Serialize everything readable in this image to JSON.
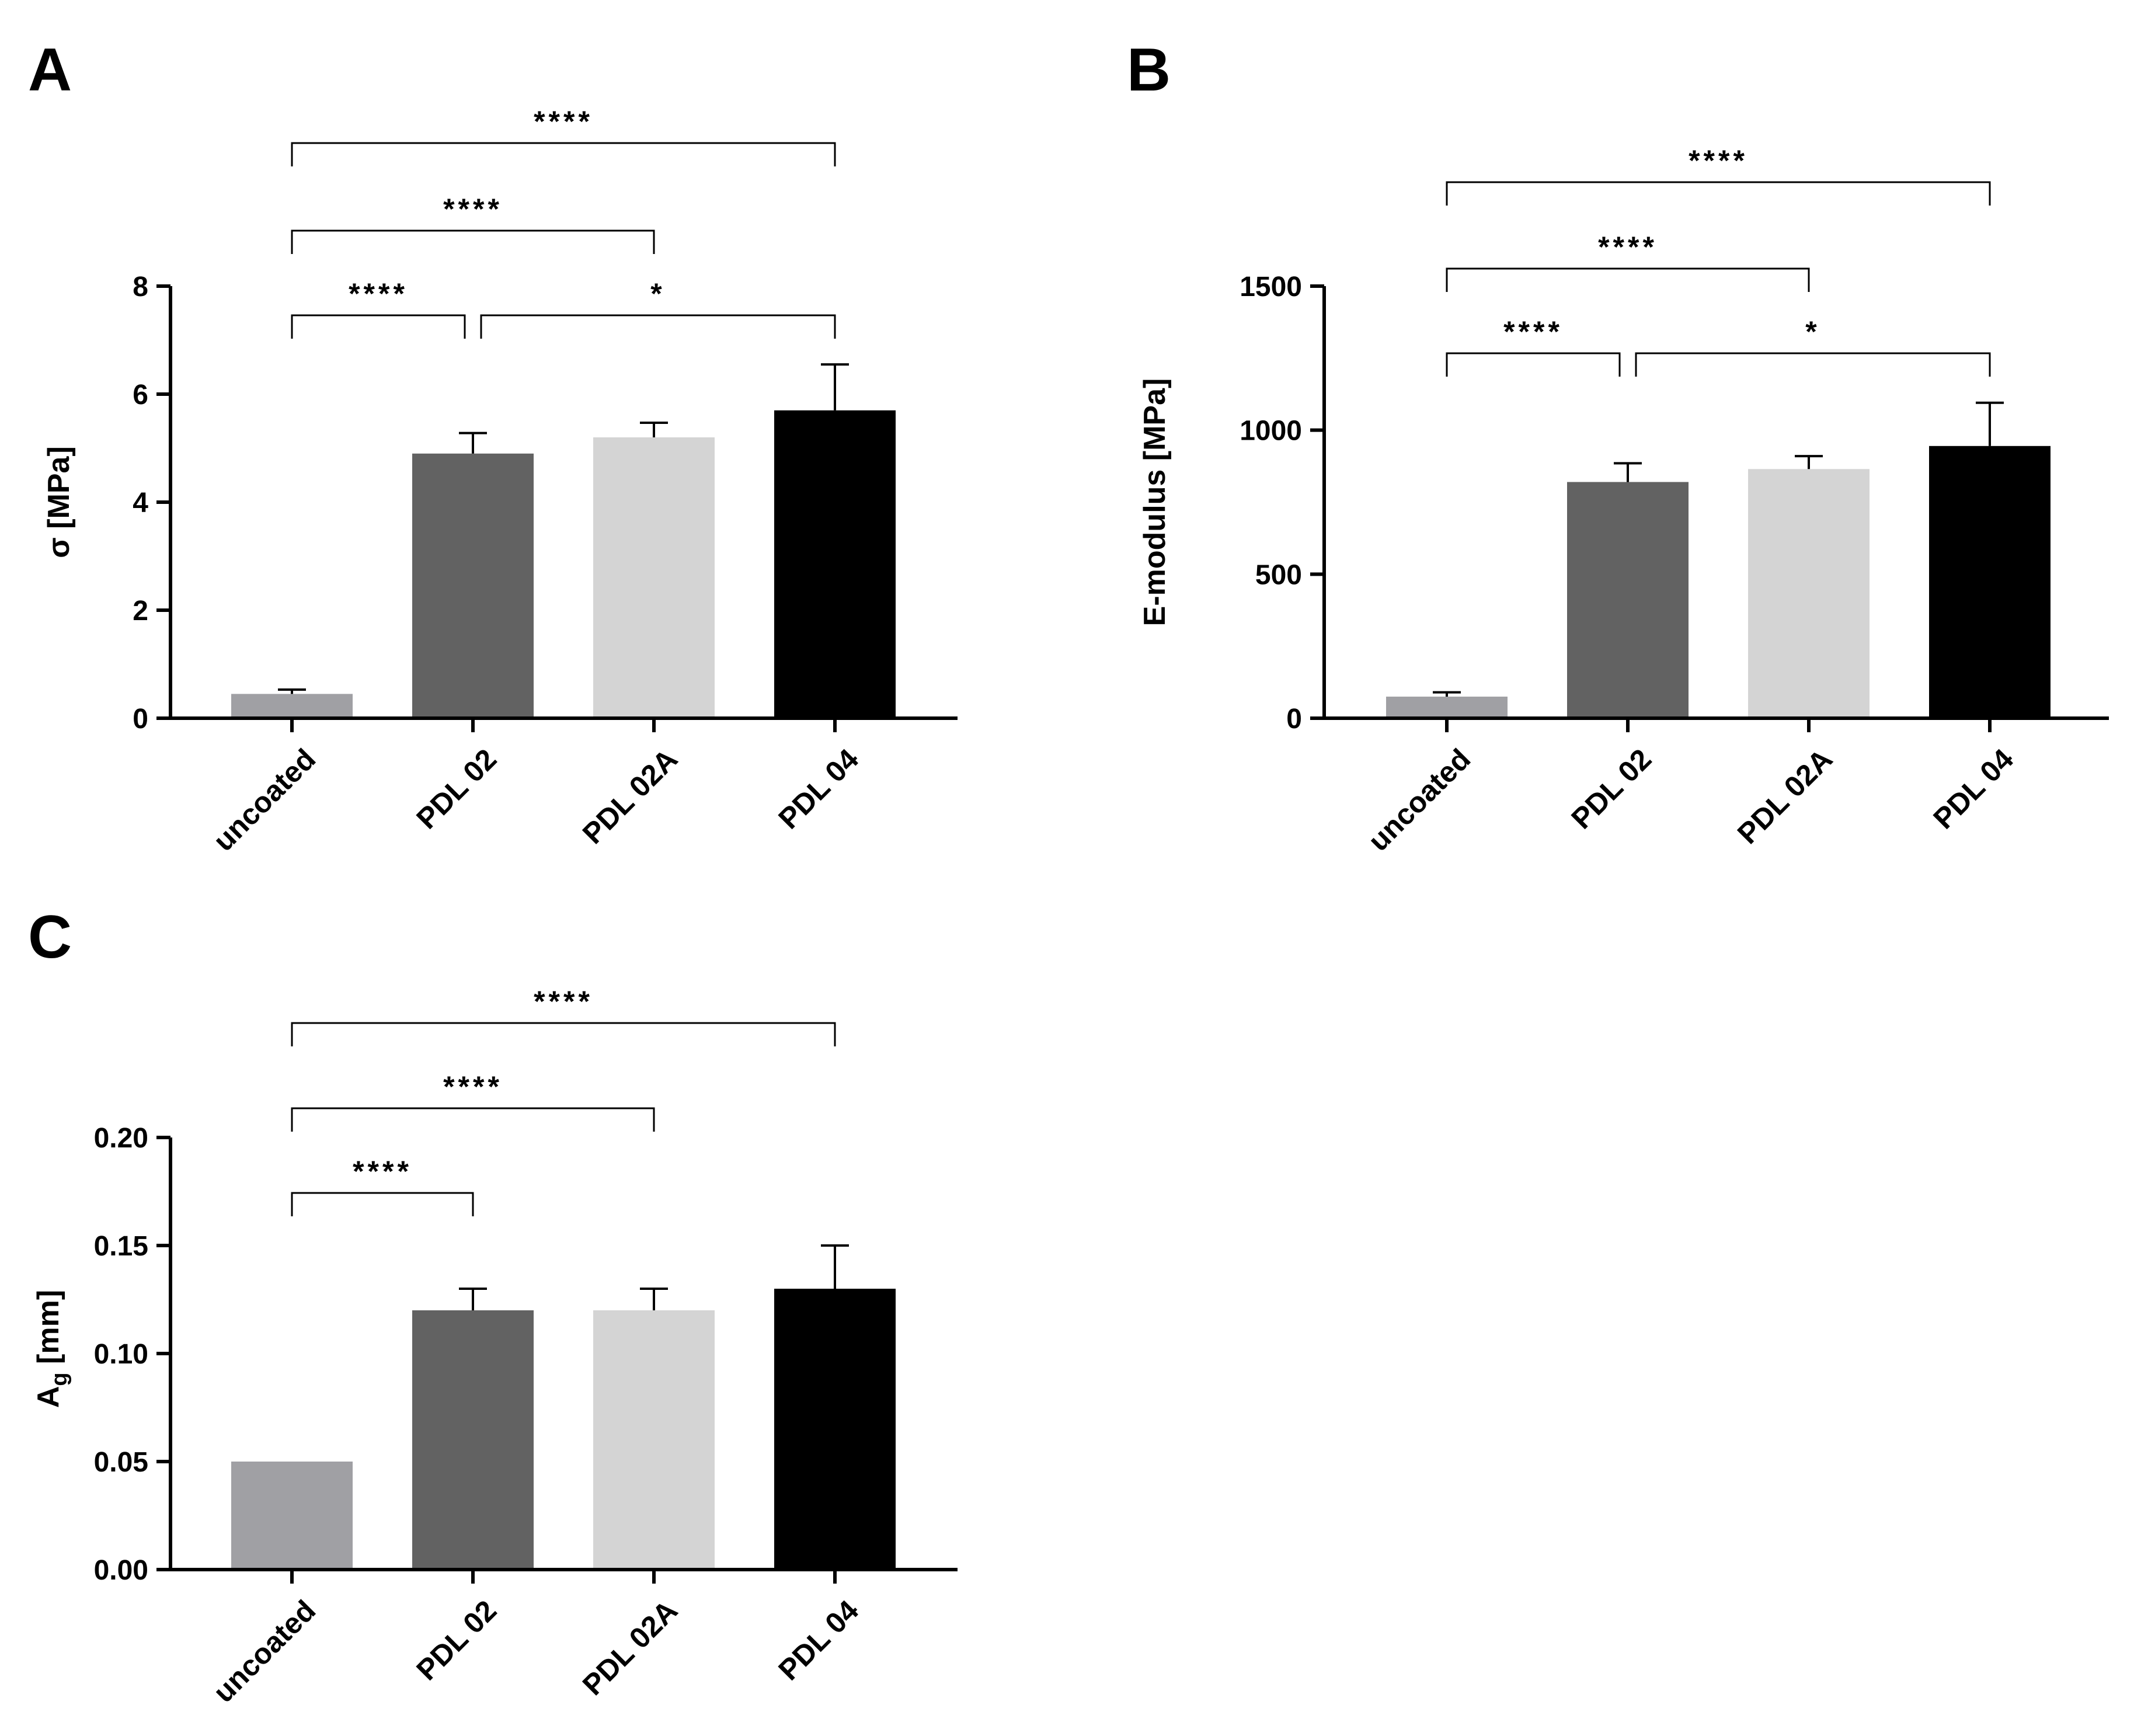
{
  "chart_data": [
    {
      "type": "bar",
      "panel": "A",
      "ylabel": "σ [MPa]",
      "ylim": [
        0,
        8
      ],
      "yticks": [
        0,
        2,
        4,
        6,
        8
      ],
      "ytick_labels": [
        "0",
        "2",
        "4",
        "6",
        "8"
      ],
      "categories": [
        "uncoated",
        "PDL 02",
        "PDL 02A",
        "PDL 04"
      ],
      "values": [
        0.45,
        4.9,
        5.2,
        5.7
      ],
      "errors": [
        0.08,
        0.38,
        0.27,
        0.85
      ],
      "colors": [
        "#a0a0a4",
        "#626262",
        "#d4d4d4",
        "#000000"
      ],
      "comparisons": [
        {
          "from": 0,
          "to": 1,
          "label": "****"
        },
        {
          "from": 1,
          "to": 3,
          "label": "*"
        },
        {
          "from": 0,
          "to": 2,
          "label": "****"
        },
        {
          "from": 0,
          "to": 3,
          "label": "****"
        }
      ]
    },
    {
      "type": "bar",
      "panel": "B",
      "ylabel": "E-modulus [MPa]",
      "ylim": [
        0,
        1500
      ],
      "yticks": [
        0,
        500,
        1000,
        1500
      ],
      "ytick_labels": [
        "0",
        "500",
        "1000",
        "1500"
      ],
      "categories": [
        "uncoated",
        "PDL 02",
        "PDL 02A",
        "PDL 04"
      ],
      "values": [
        75,
        820,
        865,
        945
      ],
      "errors": [
        15,
        65,
        45,
        150
      ],
      "colors": [
        "#a0a0a4",
        "#626262",
        "#d4d4d4",
        "#000000"
      ],
      "comparisons": [
        {
          "from": 0,
          "to": 1,
          "label": "****"
        },
        {
          "from": 1,
          "to": 3,
          "label": "*"
        },
        {
          "from": 0,
          "to": 2,
          "label": "****"
        },
        {
          "from": 0,
          "to": 3,
          "label": "****"
        }
      ]
    },
    {
      "type": "bar",
      "panel": "C",
      "ylabel": "A",
      "ylabel_sub": "g",
      "ylabel_unit": " [mm]",
      "ylim": [
        0,
        0.2
      ],
      "yticks": [
        0,
        0.05,
        0.1,
        0.15,
        0.2
      ],
      "ytick_labels": [
        "0.00",
        "0.05",
        "0.10",
        "0.15",
        "0.20"
      ],
      "categories": [
        "uncoated",
        "PDL 02",
        "PDL 02A",
        "PDL 04"
      ],
      "values": [
        0.05,
        0.12,
        0.12,
        0.13
      ],
      "errors": [
        0,
        0.01,
        0.01,
        0.02
      ],
      "colors": [
        "#a0a0a4",
        "#626262",
        "#d4d4d4",
        "#000000"
      ],
      "comparisons": [
        {
          "from": 0,
          "to": 1,
          "label": "****"
        },
        {
          "from": 0,
          "to": 2,
          "label": "****"
        },
        {
          "from": 0,
          "to": 3,
          "label": "****"
        }
      ]
    }
  ]
}
